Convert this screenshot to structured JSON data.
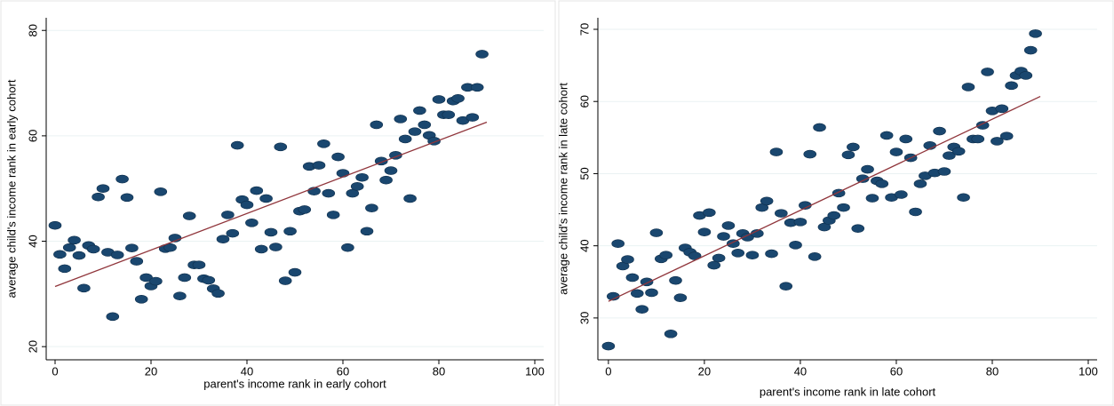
{
  "chart_data": [
    {
      "type": "scatter",
      "x_label": "parent's income rank in early cohort",
      "y_label": "average child's income rank in early cohort",
      "color": "#1a476f",
      "grid": true,
      "x": [
        0,
        1,
        2,
        3,
        4,
        5,
        6,
        7,
        8,
        9,
        10,
        11,
        12,
        13,
        14,
        15,
        16,
        17,
        18,
        19,
        20,
        21,
        22,
        23,
        24,
        25,
        26,
        27,
        28,
        29,
        30,
        31,
        32,
        33,
        34,
        35,
        36,
        37,
        38,
        39,
        40,
        41,
        42,
        43,
        44,
        45,
        46,
        47,
        48,
        49,
        50,
        51,
        52,
        53,
        54,
        55,
        56,
        57,
        58,
        59,
        60,
        61,
        62,
        63,
        64,
        65,
        66,
        67,
        68,
        69,
        70,
        71,
        72,
        73,
        74,
        75,
        76,
        77,
        78,
        79,
        80,
        81,
        82,
        83,
        84,
        85,
        86,
        87,
        88,
        89
      ],
      "values": [
        43,
        37.5,
        34.8,
        38.8,
        40.2,
        37.3,
        31.1,
        39.2,
        38.5,
        48.4,
        50,
        37.9,
        25.7,
        37.4,
        51.8,
        48.3,
        38.7,
        36.2,
        29,
        33.1,
        31.5,
        32.4,
        49.4,
        38.6,
        38.8,
        40.6,
        29.6,
        33.1,
        44.8,
        35.5,
        35.5,
        32.9,
        32.6,
        31,
        30.1,
        40.4,
        45,
        41.5,
        58.2,
        47.9,
        46.9,
        43.5,
        49.6,
        38.5,
        48.1,
        41.7,
        38.9,
        57.9,
        32.5,
        41.9,
        34.1,
        45.7,
        46,
        54.2,
        49.5,
        54.4,
        58.5,
        49.1,
        45,
        56,
        52.9,
        38.8,
        49.1,
        50.4,
        52.1,
        41.9,
        46.3,
        62.1,
        55.2,
        51.6,
        53.4,
        56.3,
        63.2,
        59.4,
        48.1,
        60.8,
        64.8,
        62.1,
        60.1,
        59,
        66.9,
        64,
        64,
        66.6,
        67.1,
        62.9,
        69.2,
        63.5,
        69.2,
        75.5
      ],
      "fit_line": {
        "x": [
          0,
          90
        ],
        "values": [
          31.4,
          62.6
        ],
        "color": "#90353b"
      },
      "xlim": [
        -1.85,
        101.85
      ],
      "ylim": [
        17.5,
        82.4
      ],
      "xticks": [
        0,
        20,
        40,
        60,
        80,
        100
      ],
      "yticks": [
        20,
        40,
        60,
        80
      ]
    },
    {
      "type": "scatter",
      "x_label": "parent's income rank in late cohort",
      "y_label": "average child's income rank in late cohort",
      "color": "#1a476f",
      "grid": true,
      "x": [
        0,
        1,
        2,
        3,
        4,
        5,
        6,
        7,
        8,
        9,
        10,
        11,
        12,
        13,
        14,
        15,
        16,
        17,
        18,
        19,
        20,
        21,
        22,
        23,
        24,
        25,
        26,
        27,
        28,
        29,
        30,
        31,
        32,
        33,
        34,
        35,
        36,
        37,
        38,
        39,
        40,
        41,
        42,
        43,
        44,
        45,
        46,
        47,
        48,
        49,
        50,
        51,
        52,
        53,
        54,
        55,
        56,
        57,
        58,
        59,
        60,
        61,
        62,
        63,
        64,
        65,
        66,
        67,
        68,
        69,
        70,
        71,
        72,
        73,
        74,
        75,
        76,
        77,
        78,
        79,
        80,
        81,
        82,
        83,
        84,
        85,
        86,
        87,
        88,
        89
      ],
      "values": [
        26.1,
        33,
        40.3,
        37.2,
        38.1,
        35.6,
        33.4,
        31.2,
        35,
        33.5,
        41.8,
        38.2,
        38.7,
        27.8,
        35.2,
        32.8,
        39.7,
        39.1,
        38.6,
        44.2,
        41.9,
        44.6,
        37.3,
        38.3,
        41.3,
        42.8,
        40.3,
        39,
        41.7,
        41.2,
        38.7,
        41.7,
        45.3,
        46.2,
        38.9,
        53,
        44.5,
        34.4,
        43.2,
        40.1,
        43.3,
        45.6,
        52.7,
        38.5,
        56.4,
        42.6,
        43.5,
        44.2,
        47.3,
        45.3,
        52.6,
        53.7,
        42.4,
        49.3,
        50.6,
        46.6,
        49,
        48.6,
        55.3,
        46.7,
        53,
        47.1,
        54.8,
        52.2,
        44.7,
        48.6,
        49.7,
        53.9,
        50.1,
        55.9,
        50.3,
        52.5,
        53.7,
        53.1,
        46.7,
        62,
        54.8,
        54.8,
        56.7,
        64.1,
        58.7,
        54.5,
        59,
        55.2,
        62.2,
        63.6,
        64.2,
        63.6,
        67.1,
        69.4
      ],
      "fit_line": {
        "x": [
          0,
          90
        ],
        "values": [
          32.3,
          60.7
        ],
        "color": "#90353b"
      },
      "xlim": [
        -2.2,
        101.85
      ],
      "ylim": [
        24.2,
        71.6
      ],
      "xticks": [
        0,
        20,
        40,
        60,
        80,
        100
      ],
      "yticks": [
        30,
        40,
        50,
        60,
        70
      ]
    }
  ]
}
